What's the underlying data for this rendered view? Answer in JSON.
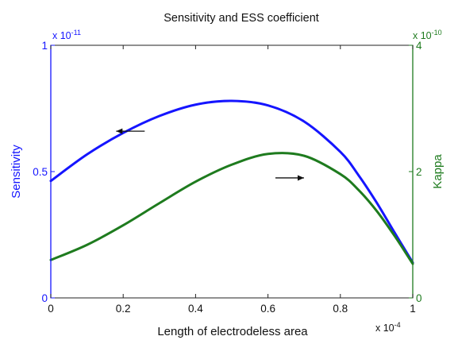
{
  "chart_data": {
    "type": "line",
    "title": "Sensitivity and ESS coefficient",
    "xlabel": "Length of electrodeless area",
    "x_multiplier": "x 10",
    "x_exponent": "-4",
    "xlim": [
      0,
      1
    ],
    "x_ticks": [
      "0",
      "0.2",
      "0.4",
      "0.6",
      "0.8",
      "1"
    ],
    "x_tick_values": [
      0,
      0.2,
      0.4,
      0.6,
      0.8,
      1
    ],
    "grid": false,
    "left_axis": {
      "label": "Sensitivity",
      "multiplier": "x 10",
      "exponent": "-11",
      "ylim": [
        0,
        1
      ],
      "ticks": [
        "0",
        "0.5",
        "1"
      ],
      "tick_values": [
        0,
        0.5,
        1
      ],
      "color": "#1515ff"
    },
    "right_axis": {
      "label": "Kappa",
      "multiplier": "x 10",
      "exponent": "-10",
      "ylim": [
        0,
        4
      ],
      "ticks": [
        "0",
        "2",
        "4"
      ],
      "tick_values": [
        0,
        2,
        4
      ],
      "color": "#1e7b1e"
    },
    "x": [
      0,
      0.1,
      0.2,
      0.3,
      0.4,
      0.5,
      0.6,
      0.7,
      0.8,
      0.85,
      0.9,
      0.95,
      1.0
    ],
    "series": [
      {
        "axis": "left",
        "color": "#1515ff",
        "values": [
          0.463,
          0.568,
          0.653,
          0.72,
          0.765,
          0.78,
          0.762,
          0.698,
          0.578,
          0.486,
          0.378,
          0.258,
          0.14
        ]
      },
      {
        "axis": "right",
        "color": "#1e7b1e",
        "values": [
          0.6,
          0.84,
          1.15,
          1.5,
          1.84,
          2.11,
          2.28,
          2.25,
          1.96,
          1.71,
          1.38,
          0.98,
          0.54
        ]
      }
    ],
    "annotations": [
      {
        "type": "arrow",
        "direction": "left",
        "x": 0.22,
        "y_left": 0.66
      },
      {
        "type": "arrow",
        "direction": "right",
        "x": 0.66,
        "y_left": 0.475
      }
    ]
  }
}
